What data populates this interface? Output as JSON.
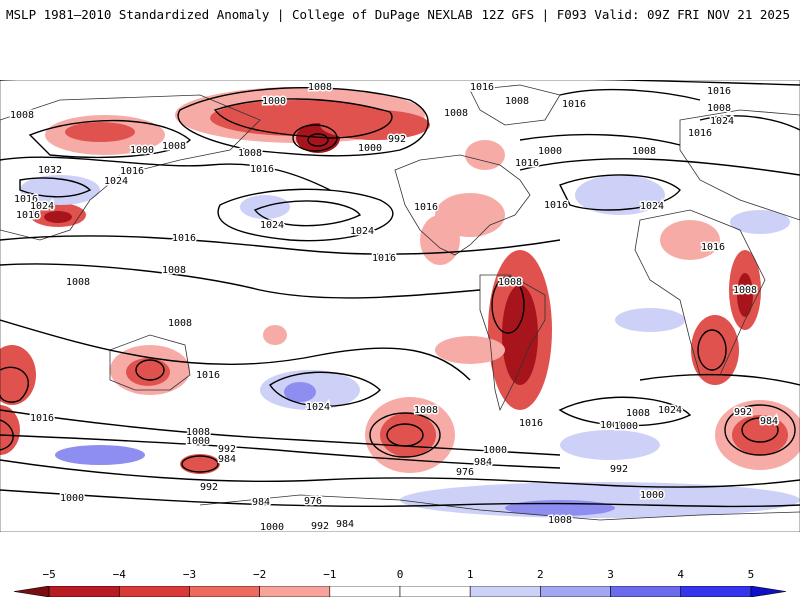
{
  "header": {
    "title_left": "MSLP 1981–2010 Standardized Anomaly | College of DuPage NEXLAB",
    "title_right": "12Z GFS | F093 Valid: 09Z FRI NOV 21 2025"
  },
  "colors": {
    "neg_strong": "#a8141b",
    "neg_mid": "#e0524d",
    "neg_light": "#f7aba6",
    "pos_light": "#cdd1f7",
    "pos_mid": "#8e8ef0",
    "pos_strong": "#2c2cf0",
    "land_outline": "#333333",
    "isobar": "#000000"
  },
  "isobar_labels": [
    {
      "id": "l01",
      "text": "1016"
    },
    {
      "id": "l02",
      "text": "1008"
    },
    {
      "id": "l03",
      "text": "1000"
    },
    {
      "id": "l04",
      "text": "1008"
    },
    {
      "id": "l05",
      "text": "1000"
    },
    {
      "id": "l06",
      "text": "992"
    },
    {
      "id": "l07",
      "text": "1008"
    },
    {
      "id": "l08",
      "text": "1016"
    },
    {
      "id": "l09",
      "text": "1008"
    },
    {
      "id": "l10",
      "text": "1016"
    },
    {
      "id": "l11",
      "text": "1016"
    },
    {
      "id": "l12",
      "text": "1008"
    },
    {
      "id": "l13",
      "text": "1000"
    },
    {
      "id": "l14",
      "text": "1008"
    },
    {
      "id": "l15",
      "text": "1016"
    },
    {
      "id": "l16",
      "text": "1032"
    },
    {
      "id": "l17",
      "text": "1024"
    },
    {
      "id": "l18",
      "text": "1016"
    },
    {
      "id": "l19",
      "text": "1024"
    },
    {
      "id": "l20",
      "text": "1016"
    },
    {
      "id": "l21",
      "text": "1016"
    },
    {
      "id": "l22",
      "text": "1024"
    },
    {
      "id": "l23",
      "text": "1008"
    },
    {
      "id": "l24",
      "text": "1008"
    },
    {
      "id": "l25",
      "text": "1024"
    },
    {
      "id": "l26",
      "text": "1016"
    },
    {
      "id": "l27",
      "text": "1016"
    },
    {
      "id": "l28",
      "text": "1024"
    },
    {
      "id": "l29",
      "text": "1000"
    },
    {
      "id": "l30",
      "text": "1008"
    },
    {
      "id": "l31",
      "text": "1016"
    },
    {
      "id": "l32",
      "text": "1016"
    },
    {
      "id": "l33",
      "text": "1008"
    },
    {
      "id": "l34",
      "text": "1016"
    },
    {
      "id": "l35",
      "text": "1024"
    },
    {
      "id": "l36",
      "text": "1016"
    },
    {
      "id": "l37",
      "text": "1008"
    },
    {
      "id": "l38",
      "text": "1008"
    },
    {
      "id": "l39",
      "text": "1016"
    },
    {
      "id": "l40",
      "text": "1024"
    },
    {
      "id": "l41",
      "text": "1008"
    },
    {
      "id": "l42",
      "text": "1000"
    },
    {
      "id": "l43",
      "text": "992"
    },
    {
      "id": "l44",
      "text": "984"
    },
    {
      "id": "l45",
      "text": "992"
    },
    {
      "id": "l46",
      "text": "984"
    },
    {
      "id": "l47",
      "text": "976"
    },
    {
      "id": "l48",
      "text": "1000"
    },
    {
      "id": "l49",
      "text": "992"
    },
    {
      "id": "l50",
      "text": "984"
    },
    {
      "id": "l51",
      "text": "1008"
    },
    {
      "id": "l52",
      "text": "1000"
    },
    {
      "id": "l53",
      "text": "1000"
    },
    {
      "id": "l54",
      "text": "984"
    },
    {
      "id": "l55",
      "text": "976"
    },
    {
      "id": "l56",
      "text": "1016"
    },
    {
      "id": "l57",
      "text": "1008"
    },
    {
      "id": "l58",
      "text": "1000"
    },
    {
      "id": "l59",
      "text": "992"
    },
    {
      "id": "l60",
      "text": "1024"
    },
    {
      "id": "l61",
      "text": "1008"
    },
    {
      "id": "l62",
      "text": "1000"
    },
    {
      "id": "l63",
      "text": "1016"
    },
    {
      "id": "l64",
      "text": "992"
    },
    {
      "id": "l65",
      "text": "984"
    },
    {
      "id": "l66",
      "text": "1008"
    },
    {
      "id": "l67",
      "text": "1000"
    }
  ],
  "colorbar": {
    "ticks": [
      "−5",
      "−4",
      "−3",
      "−2",
      "−1",
      "0",
      "1",
      "2",
      "3",
      "4",
      "5"
    ],
    "min": -5.5,
    "max": 5.5,
    "segments": [
      {
        "from": -5.5,
        "to": -5,
        "color": "#7a0d12"
      },
      {
        "from": -5,
        "to": -4,
        "color": "#b81b22"
      },
      {
        "from": -4,
        "to": -3,
        "color": "#d93a37"
      },
      {
        "from": -3,
        "to": -2,
        "color": "#ee6a60"
      },
      {
        "from": -2,
        "to": -1,
        "color": "#f7a39c"
      },
      {
        "from": -1,
        "to": 0,
        "color": "#ffffff"
      },
      {
        "from": 0,
        "to": 1,
        "color": "#ffffff"
      },
      {
        "from": 1,
        "to": 2,
        "color": "#cdd1f7"
      },
      {
        "from": 2,
        "to": 3,
        "color": "#a3a7f2"
      },
      {
        "from": 3,
        "to": 4,
        "color": "#6b6bee"
      },
      {
        "from": 4,
        "to": 5,
        "color": "#3535f0"
      },
      {
        "from": 5,
        "to": 5.5,
        "color": "#1010c8"
      }
    ]
  }
}
